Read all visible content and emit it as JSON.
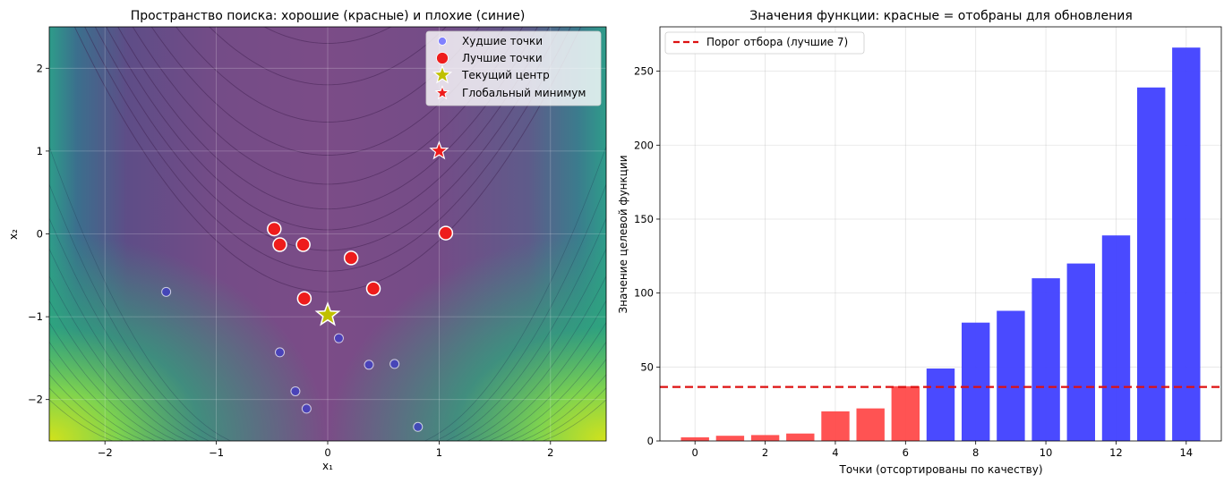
{
  "chart_data": [
    {
      "type": "scatter",
      "title": "Пространство поиска: хорошие (красные) и плохие (синие)",
      "xlabel": "x₁",
      "ylabel": "x₂",
      "xlim": [
        -2.5,
        2.5
      ],
      "ylim": [
        -2.5,
        2.5
      ],
      "xticks": [
        -2,
        -1,
        0,
        1,
        2
      ],
      "yticks": [
        -2,
        -1,
        0,
        1,
        2
      ],
      "xtick_labels": [
        "−2",
        "−1",
        "0",
        "1",
        "2"
      ],
      "ytick_labels": [
        "−2",
        "−1",
        "0",
        "1",
        "2"
      ],
      "grid": true,
      "background": "contour of Rosenbrock function (viridis colormap)",
      "legend_position": "top-right",
      "series": [
        {
          "name": "Худшие точки",
          "color": "#3e3cc8",
          "marker": "circle-small",
          "points": [
            [
              -1.45,
              -0.7
            ],
            [
              -0.43,
              -1.43
            ],
            [
              0.1,
              -1.26
            ],
            [
              0.37,
              -1.58
            ],
            [
              0.6,
              -1.57
            ],
            [
              -0.29,
              -1.9
            ],
            [
              -0.19,
              -2.11
            ],
            [
              0.81,
              -2.33
            ]
          ]
        },
        {
          "name": "Лучшие точки",
          "color": "#ee1c1c",
          "marker": "circle-large",
          "points": [
            [
              -0.48,
              0.06
            ],
            [
              -0.43,
              -0.13
            ],
            [
              -0.22,
              -0.13
            ],
            [
              1.06,
              0.01
            ],
            [
              0.21,
              -0.29
            ],
            [
              0.41,
              -0.66
            ],
            [
              -0.21,
              -0.78
            ]
          ]
        },
        {
          "name": "Текущий центр",
          "color": "#c0c000",
          "marker": "star",
          "points": [
            [
              0.0,
              -0.98
            ]
          ]
        },
        {
          "name": "Глобальный минимум",
          "color": "#ee1c1c",
          "marker": "star-small",
          "points": [
            [
              1.0,
              1.0
            ]
          ]
        }
      ]
    },
    {
      "type": "bar",
      "title": "Значения функции: красные = отобраны для обновления",
      "xlabel": "Точки (отсортированы по качеству)",
      "ylabel": "Значение целевой функции",
      "categories": [
        0,
        1,
        2,
        3,
        4,
        5,
        6,
        7,
        8,
        9,
        10,
        11,
        12,
        13,
        14
      ],
      "values": [
        2.5,
        3.5,
        4,
        5,
        20,
        22,
        37,
        49,
        80,
        88,
        110,
        120,
        139,
        239,
        266
      ],
      "selected_count": 7,
      "selected_color": "#ff4a4a",
      "other_color": "#4040ff",
      "xticks": [
        0,
        2,
        4,
        6,
        8,
        10,
        12,
        14
      ],
      "xtick_labels": [
        "0",
        "2",
        "4",
        "6",
        "8",
        "10",
        "12",
        "14"
      ],
      "yticks": [
        0,
        50,
        100,
        150,
        200,
        250
      ],
      "ytick_labels": [
        "0",
        "50",
        "100",
        "150",
        "200",
        "250"
      ],
      "xlim": [
        -1,
        15
      ],
      "ylim": [
        0,
        280
      ],
      "grid": true,
      "threshold": {
        "value": 36.5,
        "label": "Порог отбора (лучшие 7)",
        "color": "#dd1111"
      },
      "legend_position": "top-left"
    }
  ]
}
